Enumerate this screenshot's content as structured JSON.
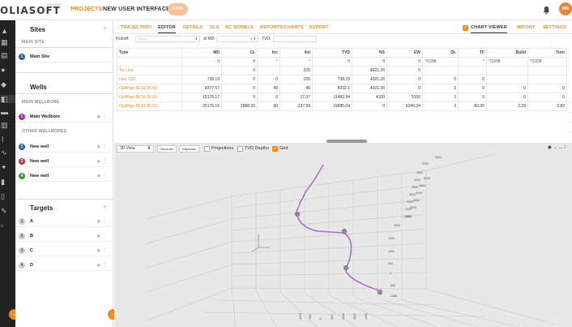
{
  "header": {
    "logo_text": "OLIASOFT",
    "logo_sub": "LOG DEV",
    "nav_projects": "PROJECTS",
    "nav_interface": "NEW USER INTERFACE",
    "save_label": "SAVE",
    "avatar_initials": "MM"
  },
  "sidebar": {
    "sites_title": "Sites",
    "main_site_header": "MAIN SITE",
    "sites": [
      {
        "num": "1",
        "label": "Main Site",
        "color": "#2a5ea8"
      }
    ],
    "wells_title": "Wells",
    "main_wellbore_header": "MAIN WELLBORE",
    "main_wellbore": {
      "num": "1",
      "label": "Main Wellbore",
      "color": "#a02fb5"
    },
    "other_wellbores_header": "OTHER WELLBORES",
    "other_wells": [
      {
        "num": "2",
        "label": "New well",
        "color": "#2a5ea8"
      },
      {
        "num": "3",
        "label": "New well",
        "color": "#c0304a"
      },
      {
        "num": "4",
        "label": "New well",
        "color": "#3a9a3a"
      }
    ],
    "targets_title": "Targets",
    "targets": [
      {
        "num": "1",
        "label": "A"
      },
      {
        "num": "2",
        "label": "B"
      },
      {
        "num": "3",
        "label": "C"
      },
      {
        "num": "4",
        "label": "D"
      }
    ]
  },
  "tabs": {
    "items": [
      "TRAJECTORY",
      "EDITOR",
      "DETAILS",
      "DLS",
      "AC MODELS",
      "REPORTS/CHARTS",
      "EXPORT"
    ],
    "chart_viewer": "CHART VIEWER",
    "import": "IMPORT",
    "settings": "SETTINGS"
  },
  "kickoff": {
    "kickoff_label": "Kickoff:",
    "kickoff_placeholder": "Select...",
    "at_md_label": "at MD:",
    "tvd_label": "TVD:"
  },
  "table": {
    "headers": [
      "Type",
      "MD",
      "CL",
      "Inc",
      "Azi",
      "TVD",
      "NS",
      "EW",
      "DL",
      "TF",
      "Build",
      "Turn"
    ],
    "units": [
      "",
      "ft",
      "ft",
      "°",
      "°",
      "ft",
      "ft",
      "ft",
      "°/100ft",
      "°",
      "°/100ft",
      "°/100ft"
    ],
    "rows": [
      [
        "Tie Line",
        "",
        "0",
        "",
        "225",
        "",
        "4921.26",
        "0",
        "",
        "",
        "",
        ""
      ],
      [
        "Line TVD",
        "738.19",
        "0",
        "0",
        "225",
        "738.19",
        "4921.26",
        "0",
        "0",
        "0",
        "",
        ""
      ],
      [
        "OptAlign DLS1 DLS2",
        "8377.67",
        "0",
        "45",
        "45",
        "8202.1",
        "4921.26",
        "0",
        "3",
        "0",
        "0",
        "0"
      ],
      [
        "OptAlign DLS1 DLS2",
        "15176.17",
        "0",
        "0",
        "17.37",
        "11482.94",
        "4100",
        "5100",
        "3",
        "0",
        "0",
        "0"
      ],
      [
        "OptAlign DLS1 DLS2",
        "25176.15",
        "2888.25",
        "90",
        "-237.99",
        "19685.04",
        "0",
        "5249.34",
        "3",
        "-82.35",
        "2.29",
        "-2.83"
      ]
    ]
  },
  "view3d": {
    "view_select": "3D View",
    "recenter": "Recenter",
    "ellipsoids": "Ellipsoids",
    "projections": "Projections",
    "tvd_depths": "TVD Depths",
    "grid": "Grid",
    "right_axis_labels": [
      "5000",
      "4500",
      "4000",
      "3500",
      "3000",
      "2500",
      "2000",
      "1500",
      "1000",
      "500",
      "0",
      "-500",
      "-1000"
    ],
    "bottom_axis_labels": [
      "-1000",
      "-500",
      "0",
      "500",
      "1000",
      "1500",
      "2000"
    ],
    "top_axis_labels": [
      "5500",
      "5000",
      "4500",
      "4000",
      "3500",
      "3000",
      "2500",
      "2000",
      "1500"
    ]
  }
}
